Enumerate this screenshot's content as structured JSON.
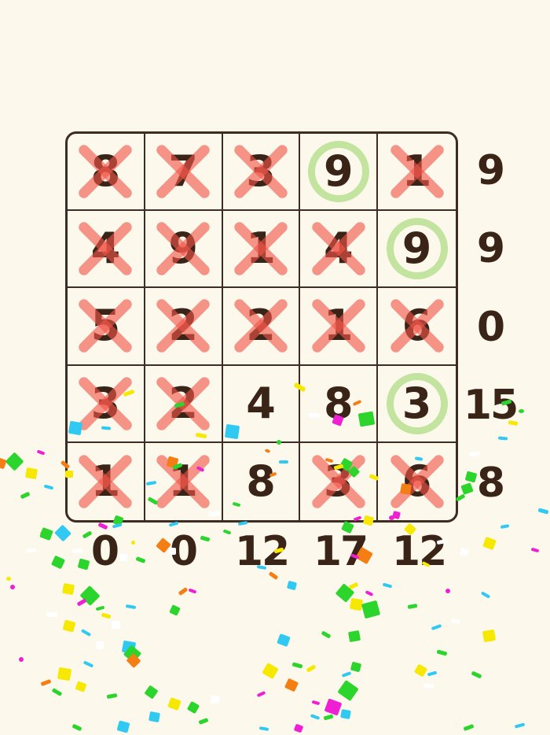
{
  "screen": "number-sum-puzzle-win",
  "colors": {
    "background": "#FDF8EC",
    "grid_line": "#3E2C20",
    "number_ink": "#3A2317",
    "cross_mark": "rgba(240,85,72,0.62)",
    "circle_mark": "#C2E49E",
    "confetti_palette": [
      "#2BD52B",
      "#F6E800",
      "#30C9F1",
      "#F57E14",
      "#EF1FD3",
      "#FFFFFF"
    ]
  },
  "puzzle": {
    "rows": 5,
    "cols": 5,
    "cells": [
      [
        {
          "value": "8",
          "mark": "cross"
        },
        {
          "value": "7",
          "mark": "cross"
        },
        {
          "value": "3",
          "mark": "cross"
        },
        {
          "value": "9",
          "mark": "circle"
        },
        {
          "value": "1",
          "mark": "cross"
        }
      ],
      [
        {
          "value": "4",
          "mark": "cross"
        },
        {
          "value": "9",
          "mark": "cross"
        },
        {
          "value": "1",
          "mark": "cross"
        },
        {
          "value": "4",
          "mark": "cross"
        },
        {
          "value": "9",
          "mark": "circle"
        }
      ],
      [
        {
          "value": "5",
          "mark": "cross"
        },
        {
          "value": "2",
          "mark": "cross"
        },
        {
          "value": "2",
          "mark": "cross"
        },
        {
          "value": "1",
          "mark": "cross"
        },
        {
          "value": "6",
          "mark": "cross"
        }
      ],
      [
        {
          "value": "3",
          "mark": "cross"
        },
        {
          "value": "2",
          "mark": "cross"
        },
        {
          "value": "4",
          "mark": "none"
        },
        {
          "value": "8",
          "mark": "none"
        },
        {
          "value": "3",
          "mark": "circle"
        }
      ],
      [
        {
          "value": "1",
          "mark": "cross"
        },
        {
          "value": "1",
          "mark": "cross"
        },
        {
          "value": "8",
          "mark": "none"
        },
        {
          "value": "3",
          "mark": "cross"
        },
        {
          "value": "6",
          "mark": "cross"
        }
      ]
    ],
    "row_sums": [
      "9",
      "9",
      "0",
      "15",
      "8"
    ],
    "col_sums": [
      "0",
      "0",
      "12",
      "17",
      "12"
    ]
  },
  "confetti": {
    "pieces_x_y_w_h_rot_colorindex": [
      [
        157,
        497,
        14,
        5,
        -20,
        1
      ],
      [
        374,
        489,
        15,
        6,
        30,
        1
      ],
      [
        129,
        542,
        12,
        4,
        5,
        2
      ],
      [
        88,
        536,
        16,
        16,
        10,
        2
      ],
      [
        10,
        578,
        17,
        17,
        45,
        0
      ],
      [
        287,
        540,
        17,
        17,
        8,
        2
      ],
      [
        222,
        512,
        13,
        5,
        -15,
        0
      ],
      [
        249,
        551,
        14,
        5,
        10,
        1
      ],
      [
        424,
        528,
        12,
        12,
        20,
        4
      ],
      [
        457,
        524,
        19,
        17,
        -10,
        0
      ],
      [
        393,
        525,
        14,
        6,
        5,
        5
      ],
      [
        449,
        510,
        11,
        4,
        -25,
        3
      ],
      [
        352,
        559,
        6,
        6,
        0,
        0
      ],
      [
        638,
        509,
        13,
        5,
        -15,
        0
      ],
      [
        660,
        520,
        7,
        5,
        0,
        0
      ],
      [
        647,
        535,
        12,
        5,
        10,
        1
      ],
      [
        634,
        555,
        12,
        4,
        5,
        2
      ],
      [
        597,
        574,
        14,
        6,
        -5,
        5
      ],
      [
        593,
        600,
        13,
        12,
        15,
        0
      ],
      [
        580,
        630,
        12,
        5,
        -30,
        0
      ],
      [
        685,
        647,
        13,
        5,
        15,
        2
      ],
      [
        337,
        571,
        7,
        4,
        20,
        3
      ],
      [
        213,
        581,
        13,
        13,
        15,
        3
      ],
      [
        77,
        588,
        12,
        5,
        40,
        3
      ],
      [
        83,
        598,
        10,
        9,
        0,
        1
      ],
      [
        186,
        612,
        13,
        4,
        -10,
        2
      ],
      [
        250,
        594,
        10,
        4,
        25,
        4
      ],
      [
        220,
        590,
        12,
        5,
        -20,
        0
      ],
      [
        188,
        634,
        13,
        5,
        30,
        0
      ],
      [
        266,
        650,
        14,
        6,
        -5,
        5
      ],
      [
        145,
        656,
        11,
        11,
        20,
        0
      ],
      [
        414,
        583,
        10,
        4,
        15,
        3
      ],
      [
        355,
        585,
        12,
        4,
        0,
        2
      ],
      [
        434,
        584,
        13,
        13,
        30,
        0
      ],
      [
        425,
        591,
        12,
        5,
        -15,
        1
      ],
      [
        445,
        594,
        11,
        11,
        45,
        0
      ],
      [
        510,
        615,
        13,
        13,
        10,
        3
      ],
      [
        500,
        650,
        9,
        9,
        15,
        4
      ],
      [
        588,
        615,
        13,
        12,
        -20,
        0
      ],
      [
        470,
        604,
        12,
        5,
        20,
        1
      ],
      [
        303,
        663,
        12,
        4,
        -10,
        2
      ],
      [
        296,
        639,
        10,
        4,
        15,
        0
      ],
      [
        343,
        601,
        9,
        4,
        -20,
        3
      ],
      [
        528,
        581,
        10,
        4,
        10,
        2
      ],
      [
        -3,
        583,
        10,
        12,
        20,
        3
      ],
      [
        33,
        595,
        14,
        13,
        10,
        1
      ],
      [
        26,
        627,
        12,
        5,
        -25,
        0
      ],
      [
        56,
        617,
        12,
        4,
        15,
        2
      ],
      [
        51,
        677,
        12,
        5,
        35,
        3
      ],
      [
        72,
        670,
        16,
        15,
        45,
        2
      ],
      [
        47,
        573,
        10,
        4,
        20,
        4
      ],
      [
        67,
        708,
        14,
        13,
        25,
        0
      ],
      [
        33,
        697,
        13,
        5,
        -5,
        5
      ],
      [
        100,
        711,
        13,
        12,
        15,
        0
      ],
      [
        143,
        666,
        12,
        4,
        -15,
        2
      ],
      [
        173,
        709,
        12,
        5,
        20,
        0
      ],
      [
        152,
        704,
        10,
        9,
        0,
        5
      ],
      [
        125,
        666,
        12,
        5,
        25,
        4
      ],
      [
        215,
        664,
        12,
        4,
        -15,
        2
      ],
      [
        52,
        672,
        14,
        13,
        20,
        0
      ],
      [
        105,
        677,
        12,
        5,
        -30,
        0
      ],
      [
        214,
        696,
        10,
        9,
        0,
        5
      ],
      [
        201,
        686,
        14,
        14,
        40,
        3
      ],
      [
        255,
        682,
        12,
        5,
        15,
        0
      ],
      [
        450,
        657,
        10,
        4,
        -20,
        4
      ],
      [
        436,
        664,
        13,
        12,
        25,
        0
      ],
      [
        463,
        656,
        12,
        11,
        15,
        1
      ],
      [
        495,
        655,
        7,
        6,
        0,
        4
      ],
      [
        455,
        698,
        17,
        16,
        30,
        3
      ],
      [
        446,
        705,
        11,
        4,
        20,
        4
      ],
      [
        556,
        686,
        13,
        5,
        -10,
        5
      ],
      [
        586,
        697,
        10,
        9,
        10,
        5
      ],
      [
        537,
        715,
        10,
        4,
        25,
        1
      ],
      [
        349,
        697,
        12,
        5,
        -15,
        1
      ],
      [
        327,
        719,
        12,
        4,
        10,
        2
      ],
      [
        342,
        729,
        12,
        5,
        35,
        3
      ],
      [
        366,
        739,
        11,
        10,
        15,
        2
      ],
      [
        444,
        742,
        12,
        5,
        -25,
        1
      ],
      [
        516,
        667,
        12,
        11,
        40,
        1
      ],
      [
        616,
        684,
        14,
        13,
        20,
        1
      ],
      [
        676,
        697,
        10,
        4,
        15,
        4
      ],
      [
        637,
        667,
        11,
        4,
        -10,
        2
      ],
      [
        284,
        674,
        10,
        4,
        20,
        0
      ],
      [
        92,
        697,
        13,
        5,
        -5,
        5
      ],
      [
        167,
        687,
        5,
        5,
        0,
        1
      ],
      [
        8,
        733,
        6,
        5,
        0,
        1
      ],
      [
        13,
        743,
        6,
        6,
        0,
        4
      ],
      [
        80,
        742,
        14,
        13,
        10,
        1
      ],
      [
        105,
        748,
        19,
        18,
        45,
        0
      ],
      [
        98,
        763,
        12,
        5,
        -30,
        4
      ],
      [
        160,
        769,
        13,
        4,
        10,
        2
      ],
      [
        59,
        778,
        14,
        6,
        5,
        5
      ],
      [
        81,
        789,
        14,
        13,
        15,
        1
      ],
      [
        103,
        802,
        13,
        4,
        30,
        2
      ],
      [
        142,
        789,
        11,
        10,
        0,
        5
      ],
      [
        227,
        749,
        12,
        5,
        -35,
        3
      ],
      [
        240,
        749,
        10,
        4,
        20,
        4
      ],
      [
        217,
        770,
        11,
        11,
        25,
        0
      ],
      [
        129,
        780,
        12,
        5,
        15,
        1
      ],
      [
        122,
        771,
        11,
        4,
        -15,
        0
      ],
      [
        156,
        815,
        16,
        15,
        10,
        2
      ],
      [
        122,
        815,
        10,
        10,
        5,
        5
      ],
      [
        160,
        823,
        17,
        16,
        40,
        0
      ],
      [
        163,
        833,
        14,
        13,
        45,
        3
      ],
      [
        106,
        842,
        13,
        4,
        25,
        2
      ],
      [
        74,
        849,
        16,
        15,
        10,
        1
      ],
      [
        52,
        865,
        13,
        5,
        -20,
        3
      ],
      [
        24,
        835,
        6,
        6,
        0,
        4
      ],
      [
        66,
        877,
        13,
        5,
        30,
        0
      ],
      [
        97,
        867,
        12,
        11,
        20,
        1
      ],
      [
        136,
        882,
        13,
        5,
        -10,
        0
      ],
      [
        150,
        917,
        14,
        13,
        15,
        2
      ],
      [
        92,
        922,
        12,
        5,
        25,
        0
      ],
      [
        336,
        845,
        16,
        15,
        30,
        1
      ],
      [
        215,
        888,
        14,
        13,
        20,
        1
      ],
      [
        186,
        873,
        13,
        13,
        35,
        0
      ],
      [
        190,
        905,
        13,
        12,
        10,
        2
      ],
      [
        240,
        893,
        12,
        12,
        30,
        0
      ],
      [
        253,
        914,
        12,
        5,
        -20,
        0
      ],
      [
        268,
        884,
        11,
        10,
        0,
        5
      ],
      [
        372,
        843,
        13,
        5,
        15,
        0
      ],
      [
        364,
        864,
        14,
        13,
        25,
        3
      ],
      [
        327,
        880,
        11,
        4,
        -25,
        4
      ],
      [
        330,
        924,
        12,
        4,
        10,
        2
      ],
      [
        375,
        921,
        10,
        9,
        20,
        4
      ],
      [
        430,
        745,
        18,
        17,
        40,
        0
      ],
      [
        446,
        761,
        15,
        14,
        10,
        1
      ],
      [
        462,
        765,
        20,
        19,
        -15,
        0
      ],
      [
        465,
        752,
        10,
        4,
        25,
        4
      ],
      [
        487,
        742,
        12,
        4,
        15,
        2
      ],
      [
        519,
        768,
        12,
        5,
        -10,
        0
      ],
      [
        354,
        807,
        14,
        13,
        20,
        2
      ],
      [
        444,
        802,
        14,
        13,
        -10,
        0
      ],
      [
        409,
        804,
        12,
        5,
        30,
        0
      ],
      [
        447,
        842,
        12,
        11,
        15,
        0
      ],
      [
        435,
        855,
        12,
        4,
        -20,
        2
      ],
      [
        433,
        868,
        20,
        19,
        35,
        0
      ],
      [
        415,
        890,
        18,
        17,
        20,
        4
      ],
      [
        434,
        902,
        12,
        11,
        10,
        2
      ],
      [
        412,
        909,
        12,
        5,
        -15,
        0
      ],
      [
        395,
        909,
        12,
        4,
        20,
        2
      ],
      [
        390,
        847,
        12,
        5,
        -30,
        1
      ],
      [
        397,
        891,
        10,
        4,
        15,
        4
      ],
      [
        549,
        795,
        13,
        4,
        -20,
        2
      ],
      [
        615,
        801,
        15,
        14,
        -10,
        1
      ],
      [
        556,
        827,
        13,
        5,
        15,
        0
      ],
      [
        529,
        846,
        13,
        12,
        30,
        1
      ],
      [
        544,
        854,
        12,
        4,
        -15,
        2
      ],
      [
        539,
        869,
        13,
        5,
        5,
        5
      ],
      [
        600,
        855,
        13,
        5,
        25,
        0
      ],
      [
        567,
        748,
        6,
        6,
        0,
        4
      ],
      [
        590,
        922,
        13,
        5,
        -20,
        0
      ],
      [
        574,
        787,
        12,
        5,
        10,
        5
      ],
      [
        612,
        754,
        12,
        4,
        30,
        2
      ],
      [
        655,
        920,
        13,
        4,
        -15,
        2
      ]
    ]
  }
}
